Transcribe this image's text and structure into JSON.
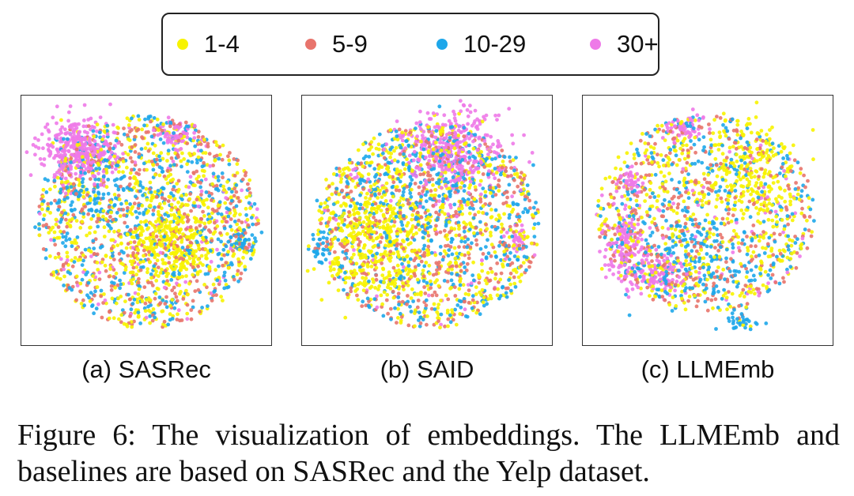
{
  "chart_data": [
    {
      "type": "scatter",
      "title": "(a) SASRec",
      "series": [
        {
          "name": "1-4",
          "color": "#f7f300"
        },
        {
          "name": "5-9",
          "color": "#e8746c"
        },
        {
          "name": "10-29",
          "color": "#1ea7ea"
        },
        {
          "name": "30+",
          "color": "#ee7ae8"
        }
      ]
    },
    {
      "type": "scatter",
      "title": "(b) SAID",
      "series": [
        {
          "name": "1-4",
          "color": "#f7f300"
        },
        {
          "name": "5-9",
          "color": "#e8746c"
        },
        {
          "name": "10-29",
          "color": "#1ea7ea"
        },
        {
          "name": "30+",
          "color": "#ee7ae8"
        }
      ]
    },
    {
      "type": "scatter",
      "title": "(c) LLMEmb",
      "series": [
        {
          "name": "1-4",
          "color": "#f7f300"
        },
        {
          "name": "5-9",
          "color": "#e8746c"
        },
        {
          "name": "10-29",
          "color": "#1ea7ea"
        },
        {
          "name": "30+",
          "color": "#ee7ae8"
        }
      ]
    }
  ],
  "legend": {
    "items": [
      {
        "label": "1-4",
        "color": "#f7f300"
      },
      {
        "label": "5-9",
        "color": "#e8746c"
      },
      {
        "label": "10-29",
        "color": "#1ea7ea"
      },
      {
        "label": "30+",
        "color": "#ee7ae8"
      }
    ]
  },
  "panels": {
    "a": {
      "caption": "(a) SASRec"
    },
    "b": {
      "caption": "(b) SAID"
    },
    "c": {
      "caption": "(c) LLMEmb"
    }
  },
  "figure_caption": "Figure 6: The visualization of embeddings. The LLMEmb and baselines are based on SASRec and the Yelp dataset."
}
